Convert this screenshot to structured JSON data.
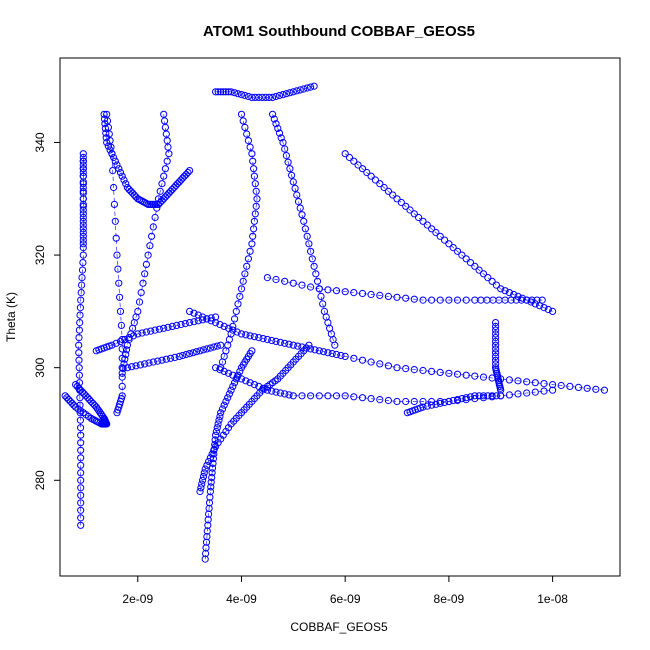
{
  "chart_data": {
    "type": "scatter",
    "title": "ATOM1 Southbound COBBAF_GEOS5",
    "xlabel": "COBBAF_GEOS5",
    "ylabel": "Theta (K)",
    "xlim": [
      5e-10,
      1.13e-08
    ],
    "ylim": [
      263,
      355
    ],
    "x_ticks": [
      {
        "value": 2e-09,
        "label": "2e-09"
      },
      {
        "value": 4e-09,
        "label": "4e-09"
      },
      {
        "value": 6e-09,
        "label": "6e-09"
      },
      {
        "value": 8e-09,
        "label": "8e-09"
      },
      {
        "value": 1e-08,
        "label": "1e-08"
      }
    ],
    "y_ticks": [
      {
        "value": 280,
        "label": "280"
      },
      {
        "value": 300,
        "label": "300"
      },
      {
        "value": 320,
        "label": "320"
      },
      {
        "value": 340,
        "label": "340"
      }
    ],
    "marker": "open-circle",
    "color": "#0000ff",
    "grid": false,
    "legend": "none",
    "series": [
      {
        "x": [
          9e-10,
          9e-10,
          9e-10,
          8.8e-10,
          8.6e-10,
          9e-10,
          9.5e-10,
          9.5e-10,
          9.5e-10,
          9.5e-10,
          9.5e-10,
          9.5e-10
        ],
        "y": [
          272,
          280,
          288,
          296,
          304,
          312,
          320,
          328,
          334,
          338,
          330,
          322
        ]
      },
      {
        "x": [
          6e-10,
          8e-10,
          1.1e-09,
          1.3e-09,
          1.4e-09,
          1.35e-09,
          1.2e-09,
          1e-09,
          8e-10
        ],
        "y": [
          295,
          293,
          291,
          290,
          290,
          291,
          293,
          295,
          297
        ]
      },
      {
        "x": [
          1.35e-09,
          1.4e-09,
          1.6e-09,
          1.8e-09,
          2e-09,
          2.2e-09,
          2.4e-09,
          2.6e-09,
          2.8e-09,
          3e-09
        ],
        "y": [
          345,
          340,
          336,
          332,
          330,
          329,
          329,
          331,
          333,
          335
        ]
      },
      {
        "x": [
          1.4e-09,
          1.5e-09,
          1.6e-09,
          1.7e-09,
          1.7e-09,
          1.6e-09
        ],
        "y": [
          345,
          338,
          320,
          305,
          295,
          292
        ]
      },
      {
        "x": [
          2.5e-09,
          2.6e-09,
          2.4e-09,
          2.2e-09,
          2e-09,
          1.8e-09,
          1.7e-09
        ],
        "y": [
          345,
          338,
          330,
          320,
          310,
          304,
          299
        ]
      },
      {
        "x": [
          3.3e-09,
          3.35e-09,
          3.4e-09,
          3.45e-09,
          3.5e-09,
          3.6e-09,
          3.8e-09,
          4e-09,
          4.2e-09
        ],
        "y": [
          266,
          272,
          278,
          283,
          288,
          292,
          296,
          300,
          303
        ]
      },
      {
        "x": [
          3.2e-09,
          3.3e-09,
          3.5e-09,
          3.8e-09,
          4.1e-09,
          4.4e-09,
          4.7e-09,
          5e-09,
          5.3e-09
        ],
        "y": [
          278,
          282,
          286,
          290,
          293,
          296,
          298,
          301,
          304
        ]
      },
      {
        "x": [
          3.5e-09,
          3.8e-09,
          4.2e-09,
          4.6e-09,
          5e-09,
          5.4e-09
        ],
        "y": [
          349,
          349,
          348,
          348,
          349,
          350
        ]
      },
      {
        "x": [
          4e-09,
          4.2e-09,
          4.3e-09,
          4.2e-09,
          4e-09,
          3.8e-09,
          3.6e-09
        ],
        "y": [
          345,
          338,
          330,
          322,
          314,
          306,
          300
        ]
      },
      {
        "x": [
          4.6e-09,
          4.8e-09,
          5e-09,
          5.2e-09,
          5.4e-09,
          5.6e-09,
          5.8e-09
        ],
        "y": [
          345,
          340,
          333,
          326,
          318,
          310,
          304
        ]
      },
      {
        "x": [
          6e-09,
          6.5e-09,
          7e-09,
          7.5e-09,
          8e-09,
          8.5e-09,
          9e-09,
          9.5e-09,
          1e-08
        ],
        "y": [
          338,
          334,
          330,
          326,
          322,
          318,
          314,
          312,
          310
        ]
      },
      {
        "x": [
          4.5e-09,
          5.5e-09,
          6.5e-09,
          7.5e-09,
          8.5e-09,
          9.2e-09,
          9.8e-09
        ],
        "y": [
          316,
          314,
          313,
          312,
          312,
          312,
          312
        ]
      },
      {
        "x": [
          3e-09,
          3.5e-09,
          4e-09,
          4.5e-09,
          5e-09,
          5.5e-09,
          6e-09,
          7e-09,
          8e-09,
          9e-09,
          1e-08,
          1.1e-08
        ],
        "y": [
          310,
          308,
          306,
          305,
          304,
          303,
          302,
          300,
          299,
          298,
          297,
          296
        ]
      },
      {
        "x": [
          3.5e-09,
          4e-09,
          4.5e-09,
          5e-09,
          6e-09,
          7e-09,
          8e-09,
          9e-09,
          1e-08
        ],
        "y": [
          300,
          298,
          296,
          295,
          295,
          294,
          294,
          295,
          296
        ]
      },
      {
        "x": [
          8.9e-09,
          8.9e-09,
          8.9e-09,
          8.95e-09,
          9e-09
        ],
        "y": [
          308,
          304,
          300,
          298,
          296
        ]
      },
      {
        "x": [
          7.2e-09,
          7.5e-09,
          8e-09,
          8.5e-09,
          9e-09
        ],
        "y": [
          292,
          293,
          294,
          295,
          295
        ]
      },
      {
        "x": [
          1.2e-09,
          1.5e-09,
          2e-09,
          2.5e-09,
          3e-09,
          3.5e-09
        ],
        "y": [
          303,
          304,
          306,
          307,
          308,
          309
        ]
      },
      {
        "x": [
          1.8e-09,
          2.3e-09,
          2.8e-09,
          3.2e-09,
          3.6e-09
        ],
        "y": [
          300,
          301,
          302,
          303,
          304
        ]
      }
    ]
  }
}
